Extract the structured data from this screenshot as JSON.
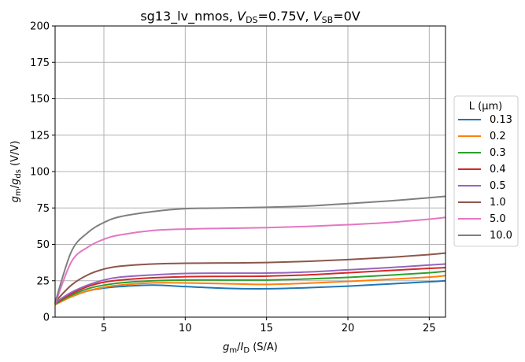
{
  "chart_data": {
    "type": "line",
    "title": {
      "prefix": "sg13_lv_nmos, ",
      "v1": "V",
      "v1_sub": "DS",
      "v1_val": "=0.75V, ",
      "v2": "V",
      "v2_sub": "SB",
      "v2_val": "=0V"
    },
    "xlabel": {
      "a": "g",
      "a_sub": "m",
      "slash": "/",
      "b": "I",
      "b_sub": "D",
      "unit": " (S/A)"
    },
    "ylabel": {
      "a": "g",
      "a_sub": "m",
      "slash": "/",
      "b": "g",
      "b_sub": "ds",
      "unit": " (V/V)"
    },
    "xlim": [
      2,
      26
    ],
    "ylim": [
      0,
      200
    ],
    "xticks": [
      "5",
      "10",
      "15",
      "20",
      "25"
    ],
    "yticks": [
      "0",
      "25",
      "50",
      "75",
      "100",
      "125",
      "150",
      "175",
      "200"
    ],
    "grid": true,
    "legend": {
      "title": "L (µm)",
      "placement": "outside-right"
    },
    "x": [
      2,
      3,
      4,
      5,
      6,
      8,
      10,
      12.5,
      15,
      17.5,
      20,
      22.5,
      25,
      26
    ],
    "series": [
      {
        "name": "0.13",
        "color": "#1f77b4",
        "values": [
          9,
          14,
          18,
          20,
          21,
          22,
          21,
          19.8,
          19.5,
          20.2,
          21.3,
          22.8,
          24.3,
          25
        ]
      },
      {
        "name": "0.2",
        "color": "#ff7f0e",
        "values": [
          8.5,
          14,
          18,
          20.5,
          22,
          23.5,
          23.5,
          23,
          22.5,
          23.3,
          24.5,
          26,
          27.5,
          28.5
        ]
      },
      {
        "name": "0.3",
        "color": "#2ca02c",
        "values": [
          9,
          15,
          19.5,
          22,
          23.5,
          25,
          25.5,
          25.5,
          25.5,
          26.2,
          27.3,
          28.8,
          30.5,
          31.5
        ]
      },
      {
        "name": "0.4",
        "color": "#d62728",
        "values": [
          9.5,
          16,
          21,
          24,
          25.5,
          27,
          27.8,
          28,
          28.2,
          29,
          30.5,
          32,
          33.5,
          34
        ]
      },
      {
        "name": "0.5",
        "color": "#9467bd",
        "values": [
          10,
          17,
          22,
          25.5,
          27.5,
          29,
          30,
          30.2,
          30.3,
          31,
          32.5,
          34,
          35.8,
          36.5
        ]
      },
      {
        "name": "1.0",
        "color": "#8c564b",
        "values": [
          10.5,
          22,
          29,
          33,
          35,
          36.5,
          37,
          37.2,
          37.5,
          38.3,
          39.5,
          41,
          43,
          44
        ]
      },
      {
        "name": "5.0",
        "color": "#e377c2",
        "values": [
          9,
          38,
          48,
          53.5,
          56.5,
          59.5,
          60.5,
          61,
          61.5,
          62.3,
          63.5,
          65,
          67.3,
          68.5
        ]
      },
      {
        "name": "10.0",
        "color": "#7f7f7f",
        "values": [
          10,
          45,
          58,
          65,
          69,
          72.5,
          74.5,
          75,
          75.5,
          76.3,
          78,
          79.8,
          82,
          83
        ]
      }
    ]
  }
}
